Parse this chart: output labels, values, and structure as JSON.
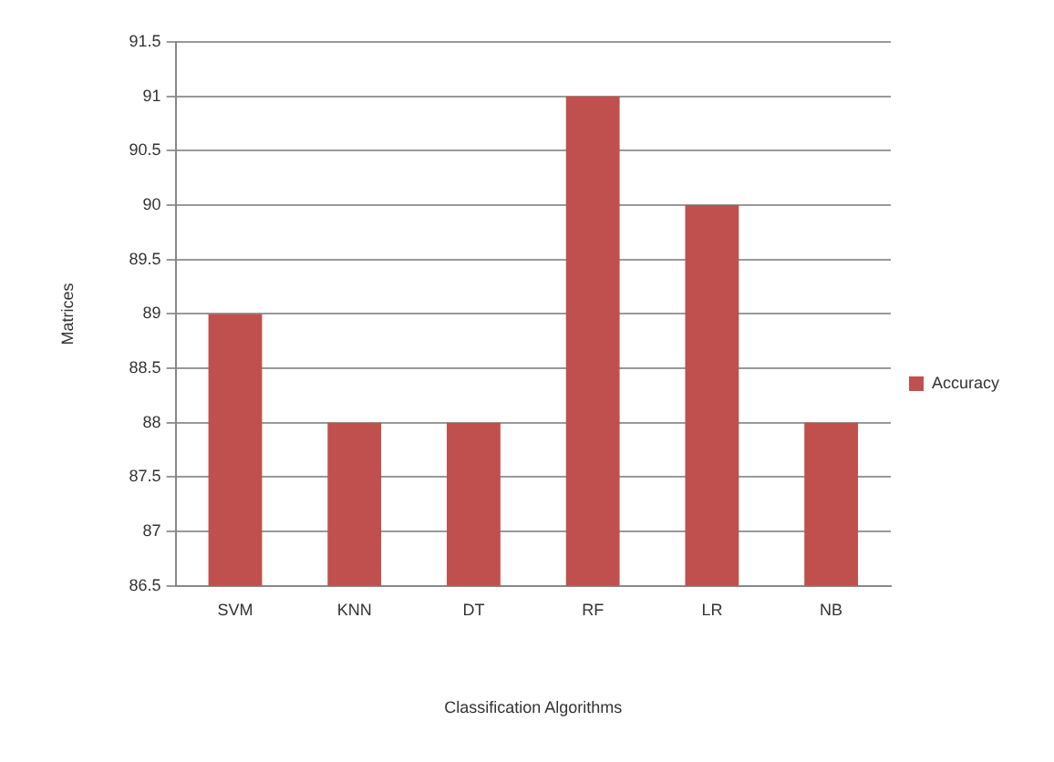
{
  "chart_data": {
    "type": "bar",
    "xlabel": "Classification Algorithms",
    "ylabel": "Matrices",
    "categories": [
      "SVM",
      "KNN",
      "DT",
      "RF",
      "LR",
      "NB"
    ],
    "series": [
      {
        "name": "Accuracy",
        "color": "#c0504d",
        "values": [
          89,
          88,
          88,
          91,
          90,
          88
        ]
      }
    ],
    "ylim": [
      86.5,
      91.5
    ],
    "yticks": [
      86.5,
      87,
      87.5,
      88,
      88.5,
      89,
      89.5,
      90,
      90.5,
      91,
      91.5
    ],
    "grid": "y",
    "legend": "right"
  }
}
